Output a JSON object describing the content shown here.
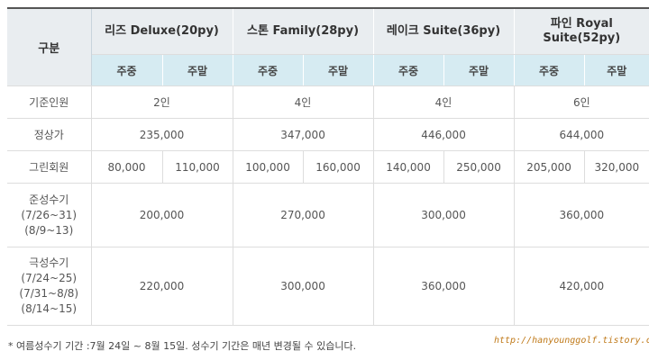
{
  "header": {
    "corner": "구분",
    "rooms": [
      "리즈 Deluxe(20py)",
      "스톤 Family(28py)",
      "레이크 Suite(36py)",
      "파인 Royal Suite(52py)"
    ],
    "weekday": "주중",
    "weekend": "주말"
  },
  "rows": {
    "capacity": {
      "label": "기준인원",
      "values": [
        "2인",
        "4인",
        "4인",
        "6인"
      ]
    },
    "regular": {
      "label": "정상가",
      "values": [
        "235,000",
        "347,000",
        "446,000",
        "644,000"
      ]
    },
    "green": {
      "label": "그린회원",
      "values": [
        "80,000",
        "110,000",
        "100,000",
        "160,000",
        "140,000",
        "250,000",
        "205,000",
        "320,000"
      ]
    },
    "semi_peak": {
      "label": "준성수기",
      "periods": [
        "(7/26~31)",
        "(8/9~13)"
      ],
      "values": [
        "200,000",
        "270,000",
        "300,000",
        "360,000"
      ]
    },
    "peak": {
      "label": "극성수기",
      "periods": [
        "(7/24~25)",
        "(7/31~8/8)",
        "(8/14~15)"
      ],
      "values": [
        "220,000",
        "300,000",
        "360,000",
        "420,000"
      ]
    }
  },
  "note": "* 여름성수기 기간 :7월 24일 ~ 8월 15일. 성수기 기간은 매년 변경될 수 있습니다.",
  "watermark": "http://hanyounggolf.tistory.com"
}
